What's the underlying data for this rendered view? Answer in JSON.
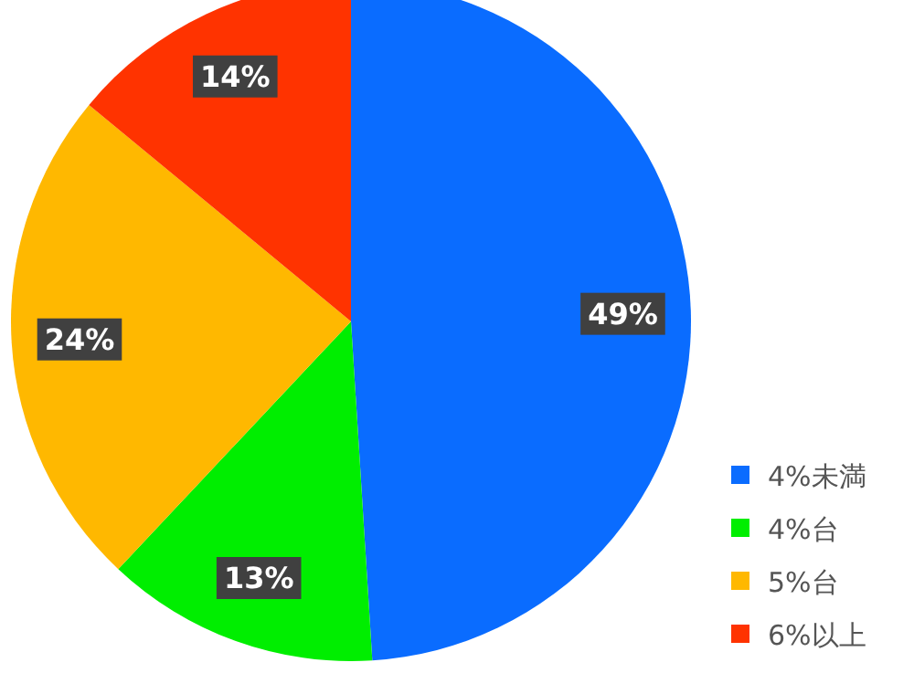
{
  "chart_data": {
    "type": "pie",
    "categories": [
      "4%未満",
      "4%台",
      "5%台",
      "6%以上"
    ],
    "values": [
      49,
      13,
      24,
      14
    ],
    "colors": [
      "#0a6cff",
      "#00ee00",
      "#ffb800",
      "#ff3300"
    ],
    "value_labels": [
      "49%",
      "13%",
      "24%",
      "14%"
    ],
    "legend": "bottom right"
  }
}
